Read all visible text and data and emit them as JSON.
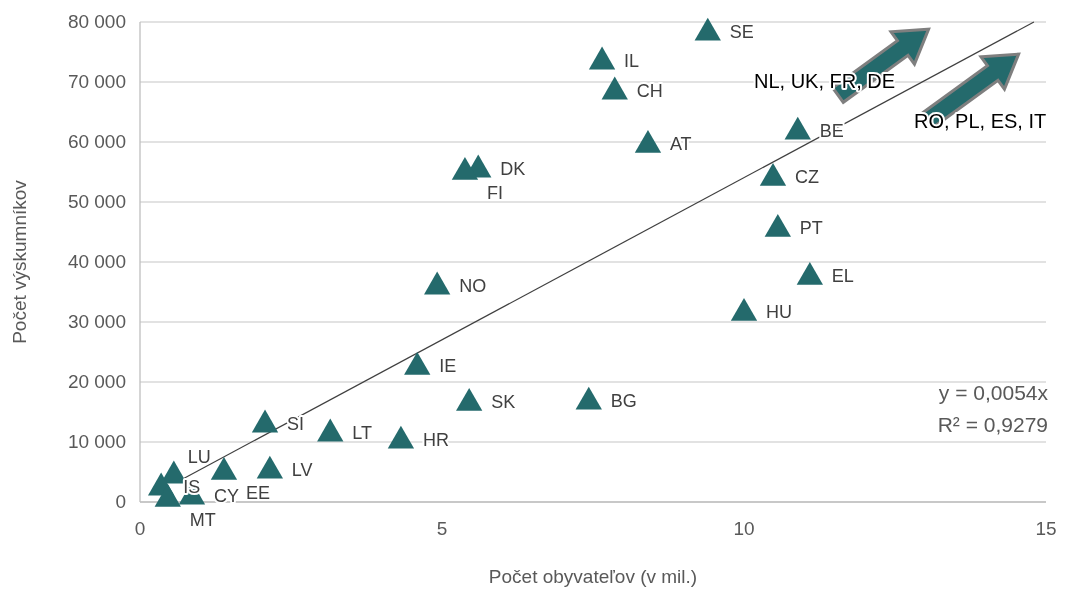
{
  "chart_data": {
    "type": "scatter",
    "xlabel": "Počet obyvateľov (v mil.)",
    "ylabel": "Počet výskumníkov",
    "xlim": [
      0,
      15
    ],
    "xticks": [
      0,
      5,
      10,
      15
    ],
    "ylim": [
      0,
      80000
    ],
    "yticks": [
      {
        "value": 0,
        "label": "0"
      },
      {
        "value": 10000,
        "label": "10 000"
      },
      {
        "value": 20000,
        "label": "20 000"
      },
      {
        "value": 30000,
        "label": "30 000"
      },
      {
        "value": 40000,
        "label": "40 000"
      },
      {
        "value": 50000,
        "label": "50 000"
      },
      {
        "value": 60000,
        "label": "60 000"
      },
      {
        "value": 70000,
        "label": "70 000"
      },
      {
        "value": 80000,
        "label": "80 000"
      }
    ],
    "grid": "y",
    "marker": "triangle",
    "series": [
      {
        "color": "#246a6c",
        "x": [
          9.4,
          7.65,
          7.86,
          8.41,
          10.89,
          10.48,
          10.56,
          11.09,
          10.0,
          5.6,
          5.38,
          4.92,
          4.59,
          5.45,
          7.43,
          4.32,
          3.15,
          2.07,
          2.15,
          1.39,
          0.56,
          0.35,
          0.46,
          0.86
        ],
        "values": [
          78500,
          73700,
          68700,
          59800,
          62000,
          54300,
          45800,
          37800,
          31800,
          55700,
          55300,
          36200,
          22800,
          16800,
          17000,
          10500,
          11700,
          13200,
          5500,
          5300,
          4700,
          2700,
          800,
          1200
        ]
      },
      {
        "type": "line",
        "color": "#404040",
        "marker": "none",
        "x": [
          0.7,
          14.8
        ],
        "values": [
          3800,
          80000
        ]
      }
    ],
    "annotations": [
      "NL, UK, FR, DE",
      "RO, PL, ES, IT",
      "y = 0,0054x",
      "R² = 0,9279",
      {
        "text": "SE",
        "x": 9.4,
        "y": 78500
      },
      {
        "text": "IL",
        "x": 7.65,
        "y": 73700
      },
      {
        "text": "CH",
        "x": 7.86,
        "y": 68700
      },
      {
        "text": "AT",
        "x": 8.41,
        "y": 59800
      },
      {
        "text": "BE",
        "x": 10.89,
        "y": 62000
      },
      {
        "text": "CZ",
        "x": 10.48,
        "y": 54300
      },
      {
        "text": "PT",
        "x": 10.56,
        "y": 45800
      },
      {
        "text": "EL",
        "x": 11.09,
        "y": 37800
      },
      {
        "text": "HU",
        "x": 10.0,
        "y": 31800
      },
      {
        "text": "DK",
        "x": 5.6,
        "y": 55700
      },
      {
        "text": "FI",
        "x": 5.38,
        "y": 55300
      },
      {
        "text": "NO",
        "x": 4.92,
        "y": 36200
      },
      {
        "text": "IE",
        "x": 4.59,
        "y": 22800
      },
      {
        "text": "SK",
        "x": 5.45,
        "y": 16800
      },
      {
        "text": "BG",
        "x": 7.43,
        "y": 17000
      },
      {
        "text": "HR",
        "x": 4.32,
        "y": 10500
      },
      {
        "text": "LT",
        "x": 3.15,
        "y": 11700
      },
      {
        "text": "SI",
        "x": 2.07,
        "y": 13200
      },
      {
        "text": "LV",
        "x": 2.15,
        "y": 5500
      },
      {
        "text": "EE",
        "x": 1.39,
        "y": 5300
      },
      {
        "text": "LU",
        "x": 0.56,
        "y": 4700
      },
      {
        "text": "IS",
        "x": 0.35,
        "y": 2700
      },
      {
        "text": "MT",
        "x": 0.46,
        "y": 800
      },
      {
        "text": "CY",
        "x": 0.86,
        "y": 1200
      }
    ]
  }
}
